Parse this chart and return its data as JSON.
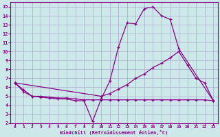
{
  "xlabel": "Windchill (Refroidissement éolien,°C)",
  "background_color": "#cce8e8",
  "grid_color": "#aaaacc",
  "line_color": "#880088",
  "xlim": [
    -0.5,
    23.5
  ],
  "ylim": [
    2,
    15.5
  ],
  "xticks": [
    0,
    1,
    2,
    3,
    4,
    5,
    6,
    7,
    8,
    9,
    10,
    11,
    12,
    13,
    14,
    15,
    16,
    17,
    18,
    19,
    20,
    21,
    22,
    23
  ],
  "yticks": [
    2,
    3,
    4,
    5,
    6,
    7,
    8,
    9,
    10,
    11,
    12,
    13,
    14,
    15
  ],
  "line1_x": [
    0,
    1,
    2,
    3,
    4,
    5,
    6,
    7,
    8,
    9,
    10,
    11,
    12,
    13,
    14,
    15,
    16,
    17,
    18,
    19,
    23
  ],
  "line1_y": [
    6.5,
    5.7,
    5.0,
    4.9,
    4.8,
    4.7,
    4.7,
    4.5,
    4.5,
    2.2,
    4.7,
    6.7,
    10.5,
    13.2,
    13.1,
    14.8,
    15.0,
    14.0,
    13.6,
    10.3,
    4.5
  ],
  "line2_x": [
    0,
    10,
    11,
    12,
    13,
    14,
    15,
    16,
    17,
    18,
    19,
    20,
    21,
    22,
    23
  ],
  "line2_y": [
    6.5,
    5.0,
    5.3,
    5.8,
    6.3,
    7.0,
    7.5,
    8.2,
    8.7,
    9.3,
    10.0,
    8.5,
    7.0,
    6.5,
    4.5
  ],
  "line3_x": [
    0,
    1,
    2,
    3,
    4,
    5,
    6,
    7,
    8,
    9,
    10,
    11,
    12,
    13,
    14,
    15,
    16,
    17,
    18,
    19,
    20,
    21,
    22,
    23
  ],
  "line3_y": [
    6.5,
    5.5,
    5.0,
    5.0,
    4.9,
    4.8,
    4.8,
    4.7,
    4.6,
    4.6,
    4.6,
    4.6,
    4.6,
    4.6,
    4.6,
    4.6,
    4.6,
    4.6,
    4.6,
    4.6,
    4.6,
    4.6,
    4.6,
    4.5
  ]
}
